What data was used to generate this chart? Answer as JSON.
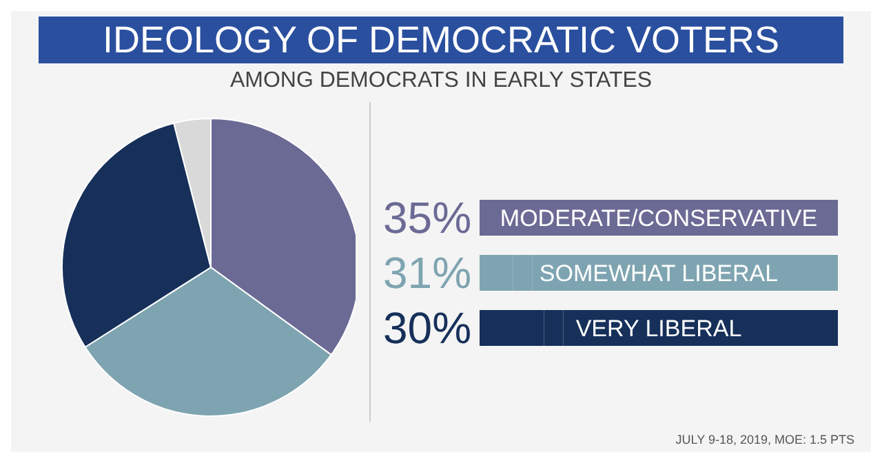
{
  "chart_data": {
    "type": "pie",
    "title": "IDEOLOGY OF DEMOCRATIC VOTERS",
    "subtitle": "AMONG DEMOCRATS IN EARLY STATES",
    "categories": [
      "MODERATE/CONSERVATIVE",
      "SOMEWHAT LIBERAL",
      "VERY LIBERAL",
      null
    ],
    "values": [
      35,
      31,
      30,
      4
    ],
    "colors": [
      "#6b6a95",
      "#7fa4b1",
      "#16305a",
      "#d9d9d9"
    ],
    "value_labels": [
      "35%",
      "31%",
      "30%",
      null
    ],
    "legend": "right",
    "annotations": [
      "JULY 9-18, 2019, MOE: 1.5 PTS"
    ]
  }
}
